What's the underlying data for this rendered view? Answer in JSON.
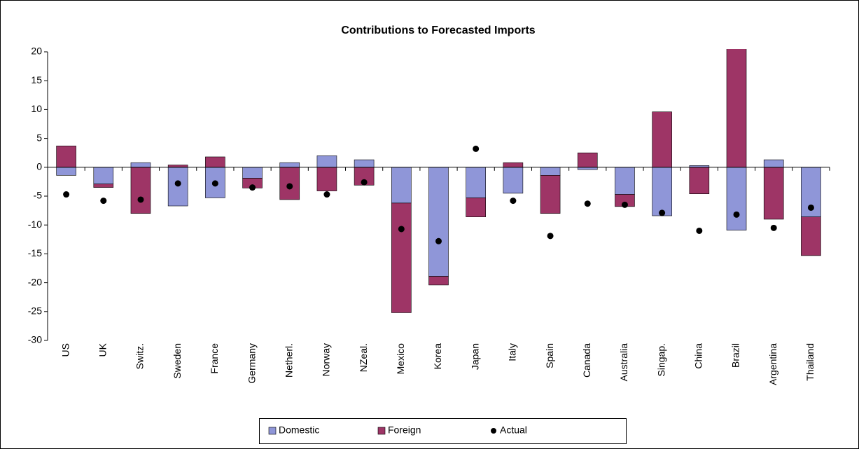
{
  "chart_data": {
    "type": "bar",
    "stacked": true,
    "title": "Contributions to Forecasted Imports",
    "categories": [
      "US",
      "UK",
      "Switz.",
      "Sweden",
      "France",
      "Germany",
      "Netherl.",
      "Norway",
      "NZeal.",
      "Mexico",
      "Korea",
      "Japan",
      "Italy",
      "Spain",
      "Canada",
      "Australia",
      "Singap.",
      "China",
      "Brazil",
      "Argentina",
      "Thailand"
    ],
    "series": [
      {
        "name": "Domestic",
        "color": "#8f96d8",
        "values": [
          -1.4,
          -2.9,
          0.8,
          -6.7,
          -5.3,
          -1.9,
          0.8,
          2.0,
          1.3,
          -6.2,
          -18.9,
          -5.3,
          -4.5,
          -1.4,
          -0.4,
          -4.7,
          -8.4,
          0.3,
          -10.9,
          1.3,
          -8.6
        ]
      },
      {
        "name": "Foreign",
        "color": "#9e3566",
        "values": [
          3.7,
          -0.6,
          -8.0,
          0.4,
          1.8,
          -1.7,
          -5.6,
          -4.1,
          -3.1,
          -19.0,
          -1.5,
          -3.3,
          0.8,
          -6.6,
          2.5,
          -2.1,
          9.6,
          -4.6,
          21.0,
          -9.0,
          -6.7
        ]
      },
      {
        "name": "Actual",
        "type": "scatter",
        "color": "#000000",
        "values": [
          -4.7,
          -5.8,
          -5.6,
          -2.8,
          -2.8,
          -3.5,
          -3.3,
          -4.7,
          -2.6,
          -10.7,
          -12.8,
          3.2,
          -5.8,
          -11.9,
          -6.3,
          -6.5,
          -7.9,
          -11.0,
          -8.2,
          -10.5,
          -7.0
        ]
      }
    ],
    "ylim": [
      -30,
      20
    ],
    "yticks": [
      -30,
      -25,
      -20,
      -15,
      -10,
      -5,
      0,
      5,
      10,
      15,
      20
    ],
    "grid": false,
    "legend": "bottom"
  }
}
